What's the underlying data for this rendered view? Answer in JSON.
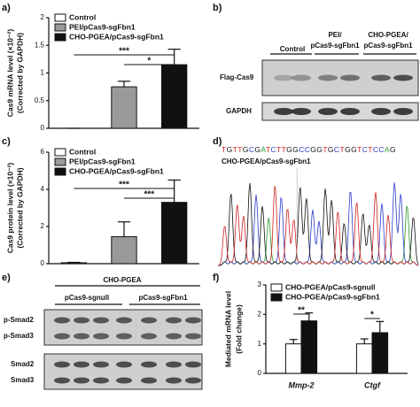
{
  "chart_data": [
    {
      "type": "bar",
      "ylabel": [
        "Cas9 mRNA level (×10⁻²)",
        "(Corrected by GAPDH)"
      ],
      "series": [
        {
          "name": "Control",
          "color": "#ffffff",
          "values": [
            0
          ],
          "errors": [
            0
          ]
        },
        {
          "name": "PEI/pCas9-sgFbn1",
          "color": "#9a9a9a",
          "values": [
            0.75
          ],
          "errors": [
            0.1
          ]
        },
        {
          "name": "CHO-PGEA/pCas9-sgFbn1",
          "color": "#111111",
          "values": [
            1.15
          ],
          "errors": [
            0.28
          ]
        }
      ],
      "ylim": [
        0,
        2
      ],
      "yticks": [
        0,
        0.5,
        1,
        1.5,
        2
      ],
      "annotations": [
        "***",
        "*"
      ]
    },
    {
      "type": "bar",
      "ylabel": [
        "Cas9 protein level (×10⁻²)",
        "(Corrected by GAPDH)"
      ],
      "series": [
        {
          "name": "Control",
          "color": "#ffffff",
          "values": [
            0.05
          ],
          "errors": [
            0.02
          ]
        },
        {
          "name": "PEI/pCas9-sgFbn1",
          "color": "#9a9a9a",
          "values": [
            1.45
          ],
          "errors": [
            0.8
          ]
        },
        {
          "name": "CHO-PGEA/pCas9-sgFbn1",
          "color": "#111111",
          "values": [
            3.3
          ],
          "errors": [
            1.2
          ]
        }
      ],
      "ylim": [
        0,
        6
      ],
      "yticks": [
        0,
        2,
        4,
        6
      ],
      "annotations": [
        "***",
        "***"
      ]
    },
    {
      "type": "bar",
      "ylabel": [
        "Mediated mRNA level",
        "(Fold change)"
      ],
      "categories": [
        "Mmp-2",
        "Ctgf"
      ],
      "series": [
        {
          "name": "CHO-PGEA/pCas9-sgnull",
          "color": "#ffffff",
          "values": [
            1.0,
            1.0
          ],
          "errors": [
            0.15,
            0.17
          ]
        },
        {
          "name": "CHO-PGEA/pCas9-sgFbn1",
          "color": "#111111",
          "values": [
            1.78,
            1.38
          ],
          "errors": [
            0.27,
            0.38
          ]
        }
      ],
      "ylim": [
        0,
        3
      ],
      "yticks": [
        0,
        1,
        2,
        3
      ],
      "annotations": [
        "**",
        "*"
      ]
    }
  ],
  "figure": {
    "letters": [
      "a)",
      "b)",
      "c)",
      "d)",
      "e)",
      "f)"
    ],
    "b": {
      "control": "Control",
      "pei": [
        "PEI/",
        "pCas9-sgFbn1"
      ],
      "cho": [
        "CHO-PGEA/",
        "pCas9-sgFbn1"
      ],
      "rows": [
        "Flag-Cas9",
        "GAPDH"
      ]
    },
    "d": {
      "sequence": "TGTTGCGATCTTGGCCGGTGCTGGTCTCCAG",
      "label": "CHO-PGEA/pCas9-sgFbn1"
    },
    "e": {
      "group": "CHO-PGEA",
      "lanes": [
        "pCas9-sgnull",
        "pCas9-sgFbn1"
      ],
      "rows": [
        "p-Smad2",
        "p-Smad3",
        "Smad2",
        "Smad3"
      ]
    }
  }
}
